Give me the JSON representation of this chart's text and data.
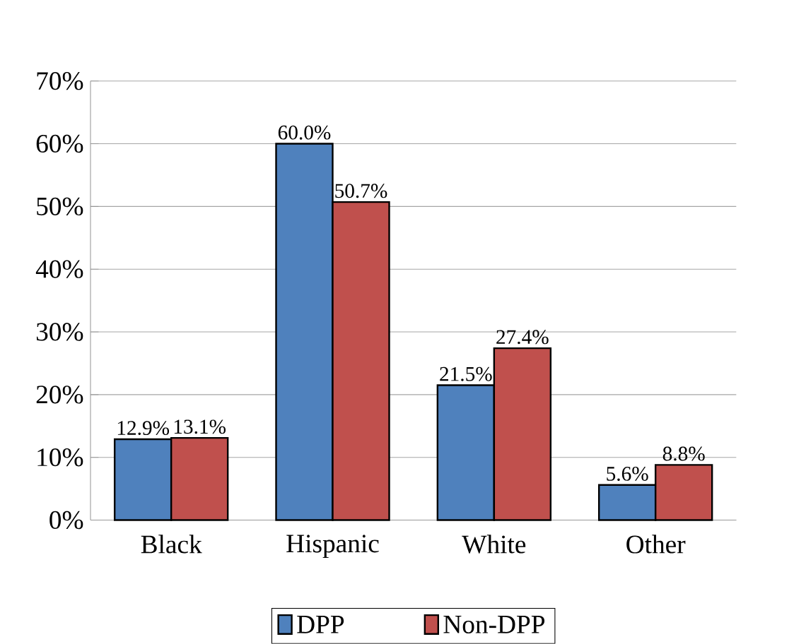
{
  "chart_data": {
    "type": "bar",
    "categories": [
      "Black",
      "Hispanic",
      "White",
      "Other"
    ],
    "series": [
      {
        "name": "DPP",
        "color": "#4f81bd",
        "values": [
          12.9,
          60.0,
          21.5,
          5.6
        ],
        "value_labels": [
          "12.9%",
          "60.0%",
          "21.5%",
          "5.6%"
        ]
      },
      {
        "name": "Non-DPP",
        "color": "#c0504d",
        "values": [
          13.1,
          50.7,
          27.4,
          8.8
        ],
        "value_labels": [
          "13.1%",
          "50.7%",
          "27.4%",
          "8.8%"
        ]
      }
    ],
    "ylim": [
      0,
      70
    ],
    "yticks": [
      {
        "value": 0,
        "label": "0%"
      },
      {
        "value": 10,
        "label": "10%"
      },
      {
        "value": 20,
        "label": "20%"
      },
      {
        "value": 30,
        "label": "30%"
      },
      {
        "value": 40,
        "label": "40%"
      },
      {
        "value": 50,
        "label": "50%"
      },
      {
        "value": 60,
        "label": "60%"
      },
      {
        "value": 70,
        "label": "70%"
      }
    ],
    "grid": "y",
    "legend": "bottom"
  }
}
